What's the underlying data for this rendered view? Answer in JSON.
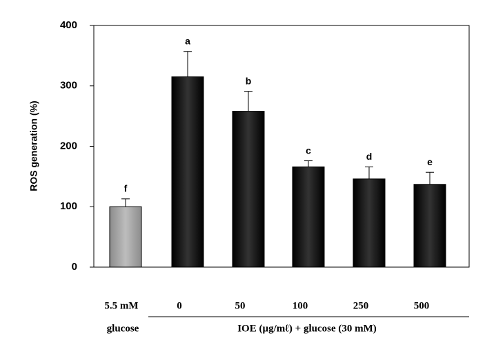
{
  "chart_data": {
    "type": "bar",
    "y_label": "ROS generation (%)",
    "categories": [
      "5.5 mM",
      "0",
      "50",
      "100",
      "250",
      "500"
    ],
    "values": [
      100,
      315,
      258,
      166,
      146,
      137
    ],
    "errors": [
      13,
      42,
      33,
      10,
      20,
      20
    ],
    "value_letters": [
      "f",
      "a",
      "b",
      "c",
      "d",
      "e"
    ],
    "colors": [
      "#8c8c8c",
      "#000000",
      "#000000",
      "#000000",
      "#000000",
      "#000000"
    ],
    "group_label_left": "glucose",
    "group_label_right": "IOE (µg/mℓ) + glucose (30 mM)",
    "ylim": [
      0,
      400
    ],
    "yticks": [
      0,
      100,
      200,
      300,
      400
    ]
  }
}
